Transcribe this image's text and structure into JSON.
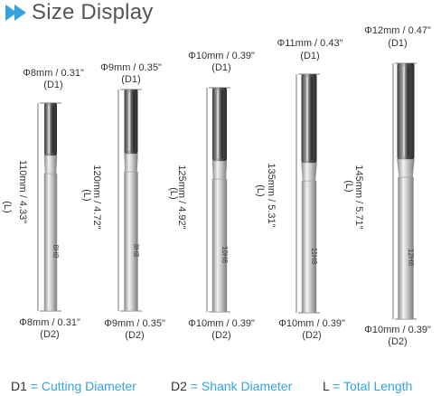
{
  "header": {
    "title": "Size Display",
    "accent_color": "#35a3dc"
  },
  "bits": [
    {
      "top_dim": "Φ8mm / 0.31\"",
      "top_tag": "(D1)",
      "length": "110mm / 4.33\"",
      "length_tag": "(L)",
      "mark": "8H8",
      "bottom_dim": "Φ8mm / 0.31\"",
      "bottom_tag": "(D2)"
    },
    {
      "top_dim": "Φ9mm / 0.35\"",
      "top_tag": "(D1)",
      "length": "120mm / 4.72\"",
      "length_tag": "(L)",
      "mark": "9H8",
      "bottom_dim": "Φ9mm / 0.35\"",
      "bottom_tag": "(D2)"
    },
    {
      "top_dim": "Φ10mm / 0.39\"",
      "top_tag": "(D1)",
      "length": "125mm / 4.92\"",
      "length_tag": "(L)",
      "mark": "10H8",
      "bottom_dim": "Φ10mm / 0.39\"",
      "bottom_tag": "(D2)"
    },
    {
      "top_dim": "Φ11mm / 0.43\"",
      "top_tag": "(D1)",
      "length": "135mm / 5.31\"",
      "length_tag": "(L)",
      "mark": "11H8",
      "bottom_dim": "Φ10mm / 0.39\"",
      "bottom_tag": "(D2)"
    },
    {
      "top_dim": "Φ12mm / 0.47\"",
      "top_tag": "(D1)",
      "length": "145mm / 5.71\"",
      "length_tag": "(L)",
      "mark": "12H8",
      "bottom_dim": "Φ10mm / 0.39\"",
      "bottom_tag": "(D2)"
    }
  ],
  "legend": {
    "d1_key": "D1",
    "d1_sep": "=",
    "d1_value": "Cutting Diameter",
    "d2_key": "D2",
    "d2_sep": "=",
    "d2_value": "Shank Diameter",
    "l_key": "L",
    "l_sep": "=",
    "l_value": "Total Length"
  }
}
